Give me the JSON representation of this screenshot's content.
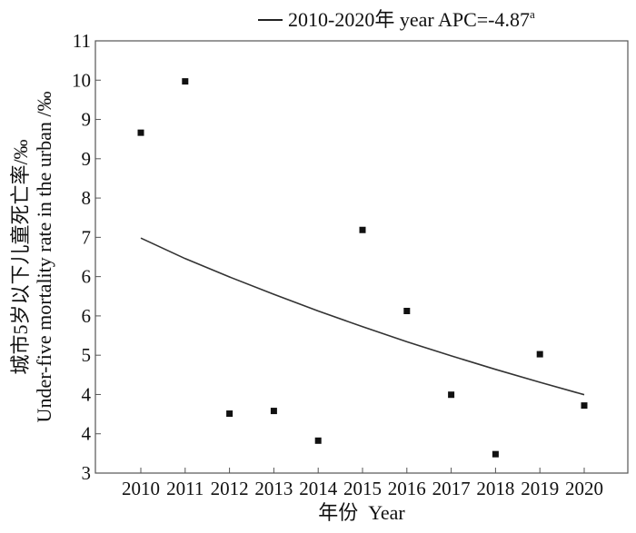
{
  "chart_data": {
    "type": "scatter",
    "x": [
      2010,
      2011,
      2012,
      2013,
      2014,
      2015,
      2016,
      2017,
      2018,
      2019,
      2020
    ],
    "x_tick_labels": [
      "2010",
      "2011",
      "2012",
      "2013",
      "2014",
      "2015",
      "2016",
      "2017",
      "2018",
      "2019",
      "2020"
    ],
    "y_tick_labels": [
      "3",
      "4",
      "4",
      "5",
      "6",
      "6",
      "7",
      "8",
      "9",
      "9",
      "10",
      "11"
    ],
    "ylim": [
      3,
      11
    ],
    "xlabel": "年份  Year",
    "ylabel_line1": "城市5岁以下儿童死亡率/‰",
    "ylabel_line2": "Under-five mortality rate in the urban /‰",
    "grid": false,
    "legend_position": "top-right",
    "series": [
      {
        "type": "scatter",
        "values": [
          9.3,
          10.25,
          4.1,
          4.15,
          3.6,
          7.5,
          6.0,
          4.45,
          3.35,
          5.2,
          4.25
        ]
      },
      {
        "type": "line",
        "name": "2010-2020年 year APC=-4.87",
        "name_superscript": "a",
        "values": [
          7.35,
          6.97,
          6.63,
          6.31,
          6.0,
          5.71,
          5.43,
          5.17,
          4.92,
          4.68,
          4.45
        ]
      }
    ]
  },
  "colors": {
    "marker": "#111111",
    "trend_line": "#333333",
    "axis": "#555555"
  }
}
